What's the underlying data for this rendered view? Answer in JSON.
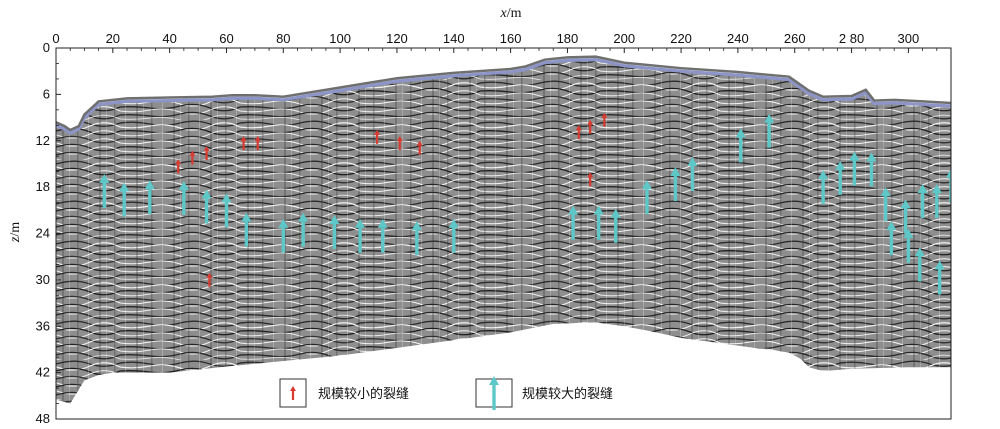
{
  "chart_data": {
    "type": "scatter",
    "x_axis": {
      "label_var": "x",
      "label_unit": "/m",
      "range": [
        0,
        315
      ],
      "ticks": [
        0,
        20,
        40,
        60,
        80,
        100,
        120,
        140,
        160,
        180,
        200,
        220,
        240,
        260,
        280,
        300
      ],
      "tick_labels": [
        "0",
        "20",
        "40",
        "60",
        "80",
        "100",
        "120",
        "140",
        "160",
        "180",
        "200",
        "220",
        "240",
        "260",
        "2 80",
        "300"
      ]
    },
    "y_axis": {
      "label_var": "z",
      "label_unit": "/m",
      "range": [
        0,
        48
      ],
      "inverted": true,
      "ticks": [
        0,
        6,
        12,
        18,
        24,
        30,
        36,
        42,
        48
      ],
      "tick_labels": [
        "0",
        "6",
        "12",
        "18",
        "24",
        "30",
        "36",
        "42",
        "48"
      ]
    },
    "surface_profile": {
      "x": [
        0,
        3,
        5,
        8,
        10,
        15,
        25,
        40,
        55,
        62,
        70,
        80,
        100,
        120,
        140,
        160,
        165,
        172,
        180,
        190,
        200,
        220,
        240,
        258,
        265,
        270,
        280,
        285,
        288,
        295,
        305,
        315
      ],
      "z": [
        10,
        10.5,
        11,
        10.5,
        9,
        7.3,
        6.9,
        6.8,
        6.7,
        6.5,
        6.5,
        6.7,
        5.5,
        4.3,
        3.6,
        3.1,
        2.8,
        1.9,
        1.6,
        1.5,
        2.3,
        3.0,
        3.5,
        4.1,
        5.9,
        6.7,
        6.6,
        5.8,
        7.2,
        7.1,
        7.3,
        7.5
      ]
    },
    "bottom_profile": {
      "x": [
        0,
        5,
        10,
        15,
        20,
        40,
        60,
        80,
        100,
        120,
        140,
        160,
        175,
        190,
        200,
        210,
        220,
        240,
        258,
        262,
        265,
        270,
        280,
        290,
        300,
        315
      ],
      "z": [
        45.5,
        46,
        43,
        42.3,
        42,
        42,
        41.2,
        40.5,
        39.8,
        38.8,
        37.8,
        36.8,
        35.7,
        35.5,
        36,
        36.7,
        37.5,
        38.5,
        39.4,
        40.2,
        41.3,
        41.8,
        41.5,
        41.4,
        41.3,
        41.3
      ]
    },
    "series": [
      {
        "name": "规模较小的裂缝",
        "color": "#d93a30",
        "marker": "small-up-arrow",
        "points": [
          [
            43,
            15.3
          ],
          [
            48,
            14.2
          ],
          [
            53,
            13.6
          ],
          [
            66,
            12.3
          ],
          [
            71,
            12.3
          ],
          [
            113,
            11.5
          ],
          [
            121,
            12.3
          ],
          [
            128,
            12.9
          ],
          [
            184,
            10.9
          ],
          [
            188,
            10.2
          ],
          [
            193,
            9.3
          ],
          [
            188,
            17.0
          ],
          [
            54,
            30.0
          ]
        ]
      },
      {
        "name": "规模较大的裂缝",
        "color": "#5ec7c7",
        "marker": "large-up-arrow",
        "points": [
          [
            17,
            18.5
          ],
          [
            24,
            19.6
          ],
          [
            33,
            19.3
          ],
          [
            45,
            19.4
          ],
          [
            53,
            20.5
          ],
          [
            60,
            21.0
          ],
          [
            67,
            23.5
          ],
          [
            80,
            24.3
          ],
          [
            87,
            23.5
          ],
          [
            98,
            23.8
          ],
          [
            107,
            24.3
          ],
          [
            115,
            24.3
          ],
          [
            127,
            24.6
          ],
          [
            140,
            24.3
          ],
          [
            182,
            22.6
          ],
          [
            191,
            22.6
          ],
          [
            197,
            23.0
          ],
          [
            208,
            19.3
          ],
          [
            218,
            17.6
          ],
          [
            224,
            16.3
          ],
          [
            241,
            12.6
          ],
          [
            251,
            10.7
          ],
          [
            270,
            18.0
          ],
          [
            276,
            16.8
          ],
          [
            281,
            15.6
          ],
          [
            287,
            15.7
          ],
          [
            292,
            20.2
          ],
          [
            294,
            24.6
          ],
          [
            299,
            21.8
          ],
          [
            300,
            25.6
          ],
          [
            304,
            28.0
          ],
          [
            305,
            19.8
          ],
          [
            310,
            19.8
          ],
          [
            311,
            29.7
          ],
          [
            315,
            17.8
          ]
        ]
      }
    ],
    "legend": {
      "placement": "bottom-center",
      "entries": [
        {
          "label": "规模较小的裂缝",
          "series": 0
        },
        {
          "label": "规模较大的裂缝",
          "series": 1
        }
      ]
    },
    "grid": false
  }
}
